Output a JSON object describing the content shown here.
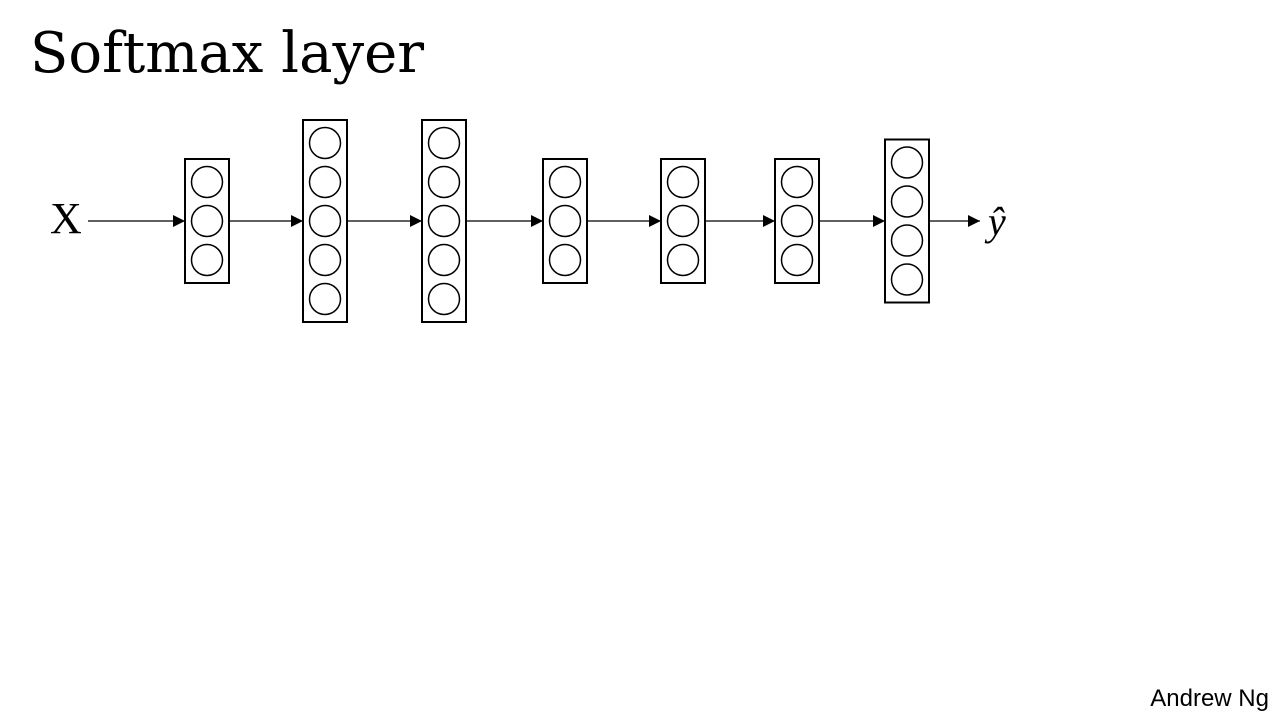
{
  "slide": {
    "title": "Softmax layer",
    "input_label": "X",
    "output_label": "ŷ",
    "attribution": "Andrew Ng"
  },
  "network": {
    "layers": [
      {
        "units": 3
      },
      {
        "units": 5
      },
      {
        "units": 5
      },
      {
        "units": 3
      },
      {
        "units": 3
      },
      {
        "units": 3
      },
      {
        "units": 4
      }
    ],
    "arrows_between_layers": true
  },
  "colors": {
    "background": "#ffffff",
    "stroke": "#000000",
    "text": "#000000"
  }
}
